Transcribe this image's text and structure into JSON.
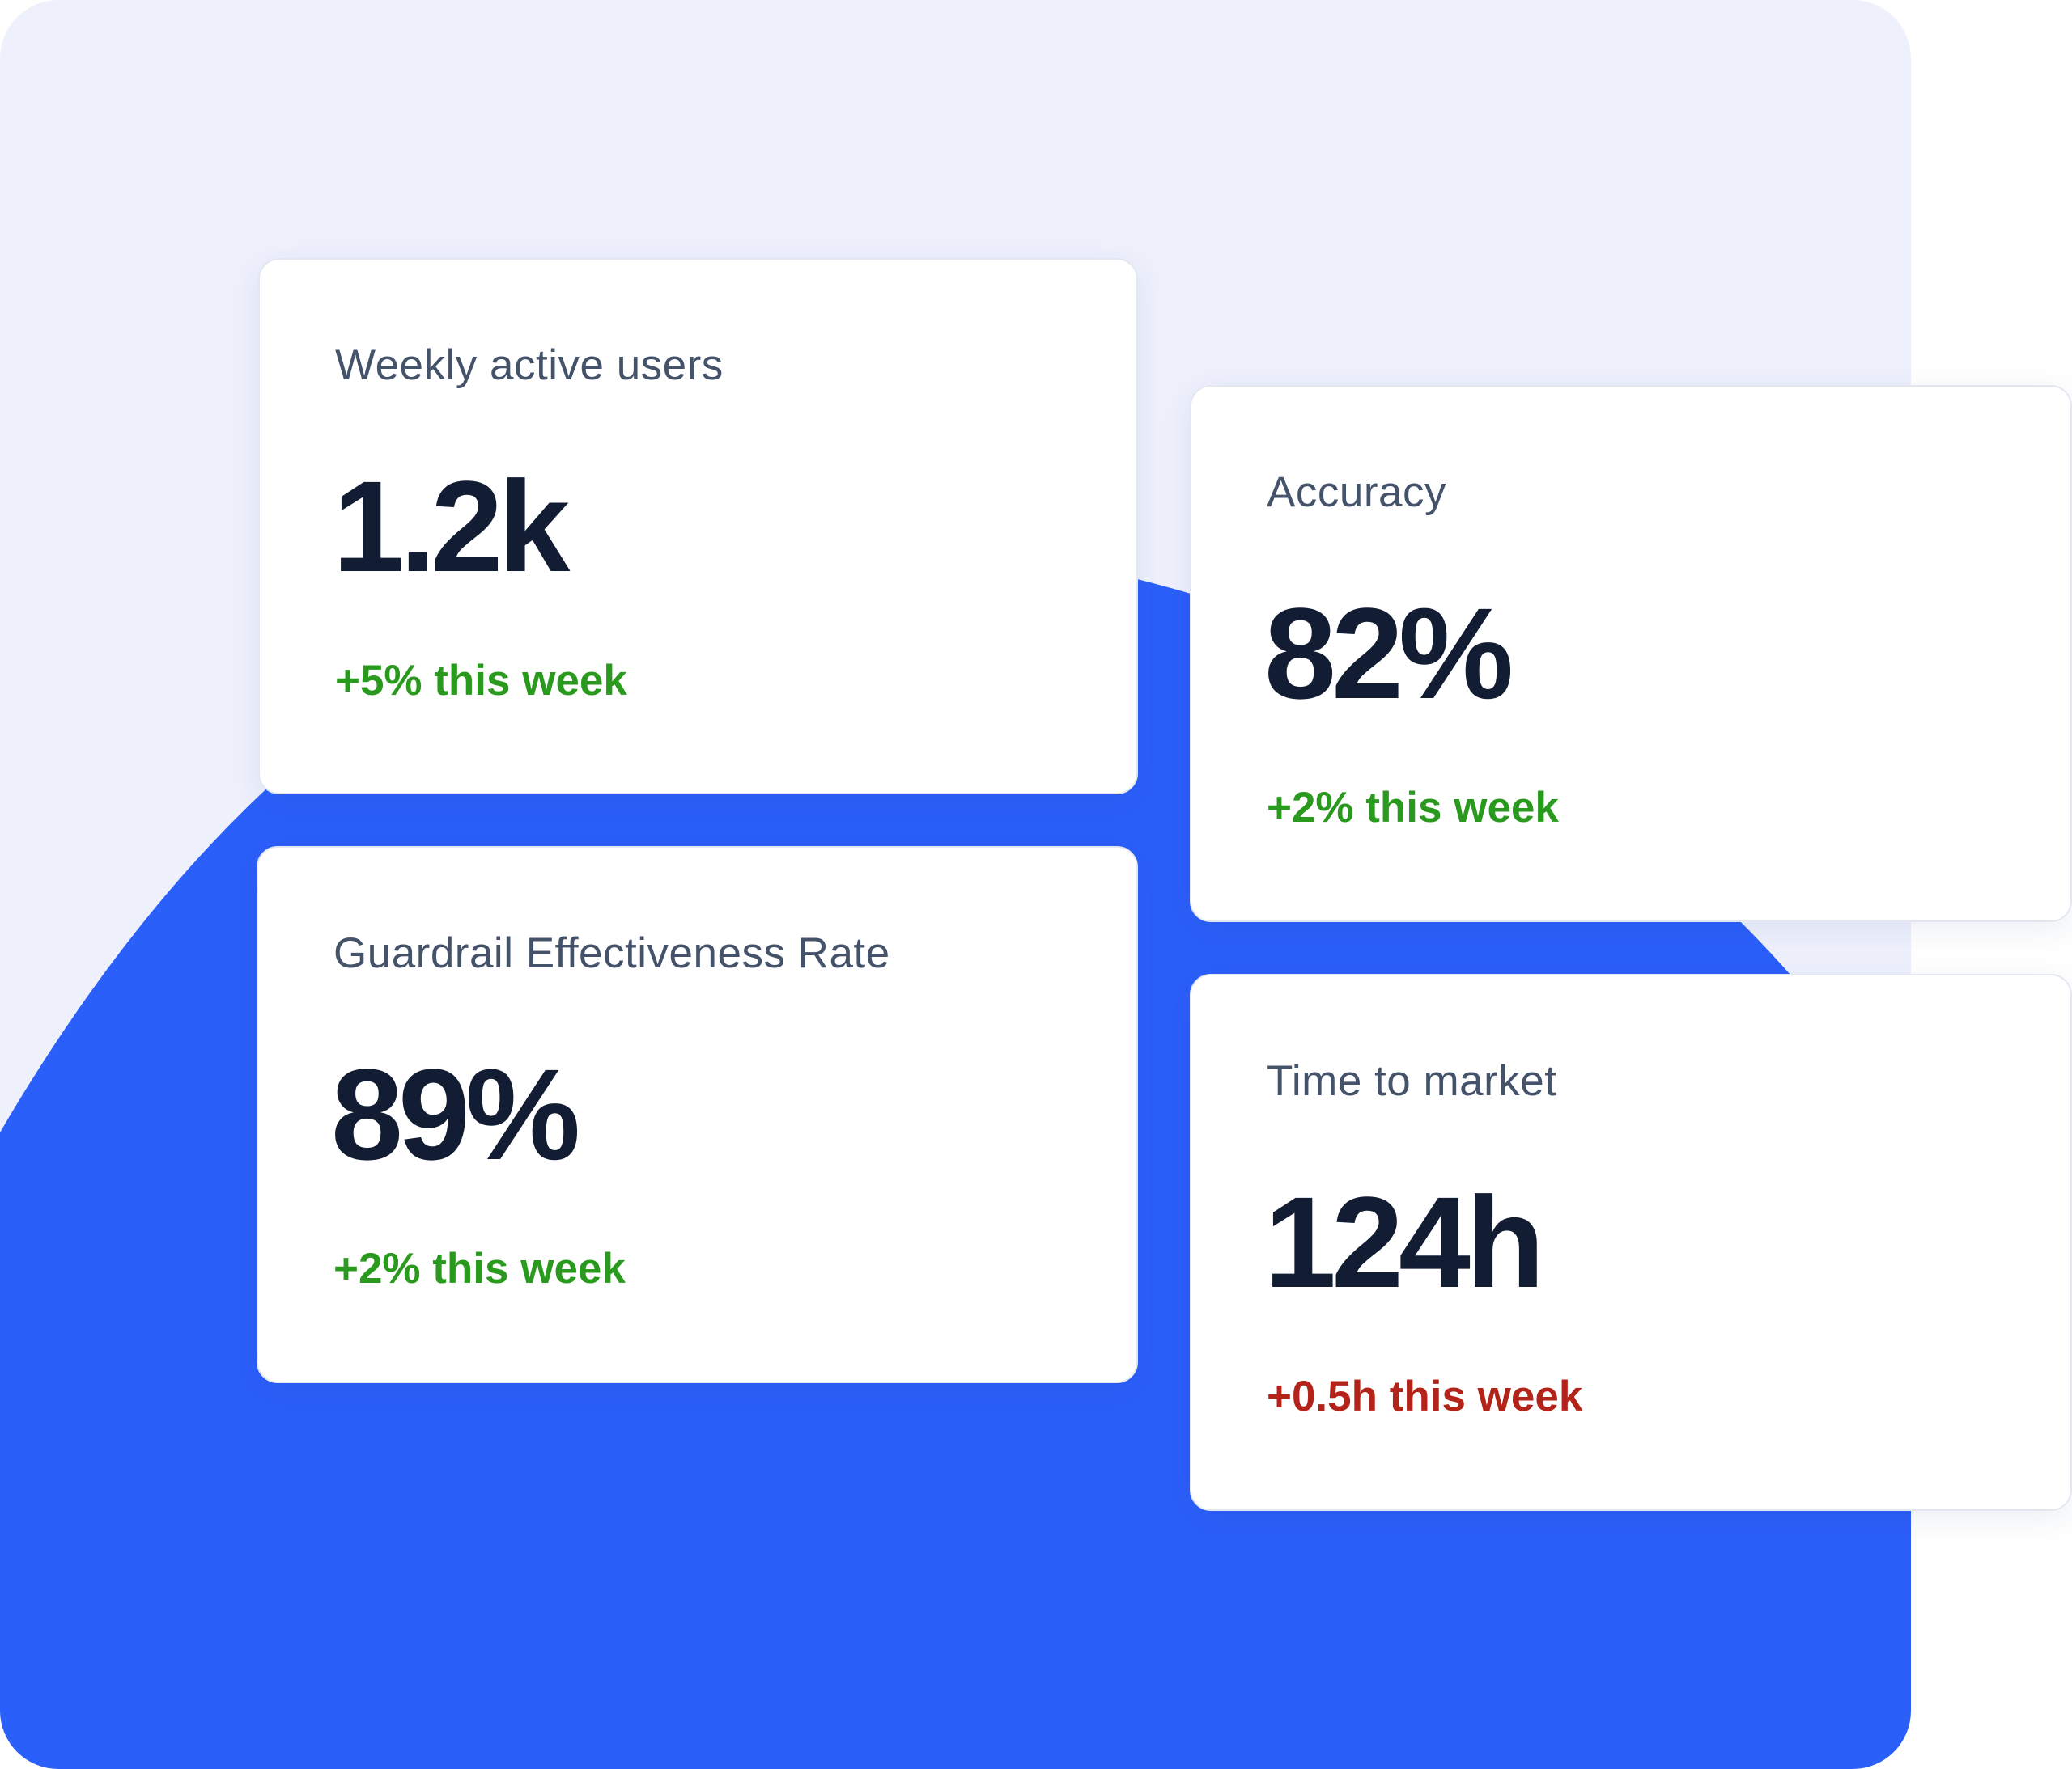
{
  "colors": {
    "panel_background": "#eef1fc",
    "accent_blue": "#2b5ff9",
    "card_background": "#ffffff",
    "value_text": "#121d33",
    "label_text": "#44526a",
    "positive_delta": "#2a9a1e",
    "negative_delta": "#b3231a"
  },
  "metrics": [
    {
      "label": "Weekly active users",
      "value": "1.2k",
      "delta": "+5% this week",
      "trend": "positive"
    },
    {
      "label": "Accuracy",
      "value": "82%",
      "delta": "+2% this week",
      "trend": "positive"
    },
    {
      "label": "Guardrail Effectiveness Rate",
      "value": "89%",
      "delta": "+2% this week",
      "trend": "positive"
    },
    {
      "label": "Time to market",
      "value": "124h",
      "delta": "+0.5h this week",
      "trend": "negative"
    }
  ]
}
